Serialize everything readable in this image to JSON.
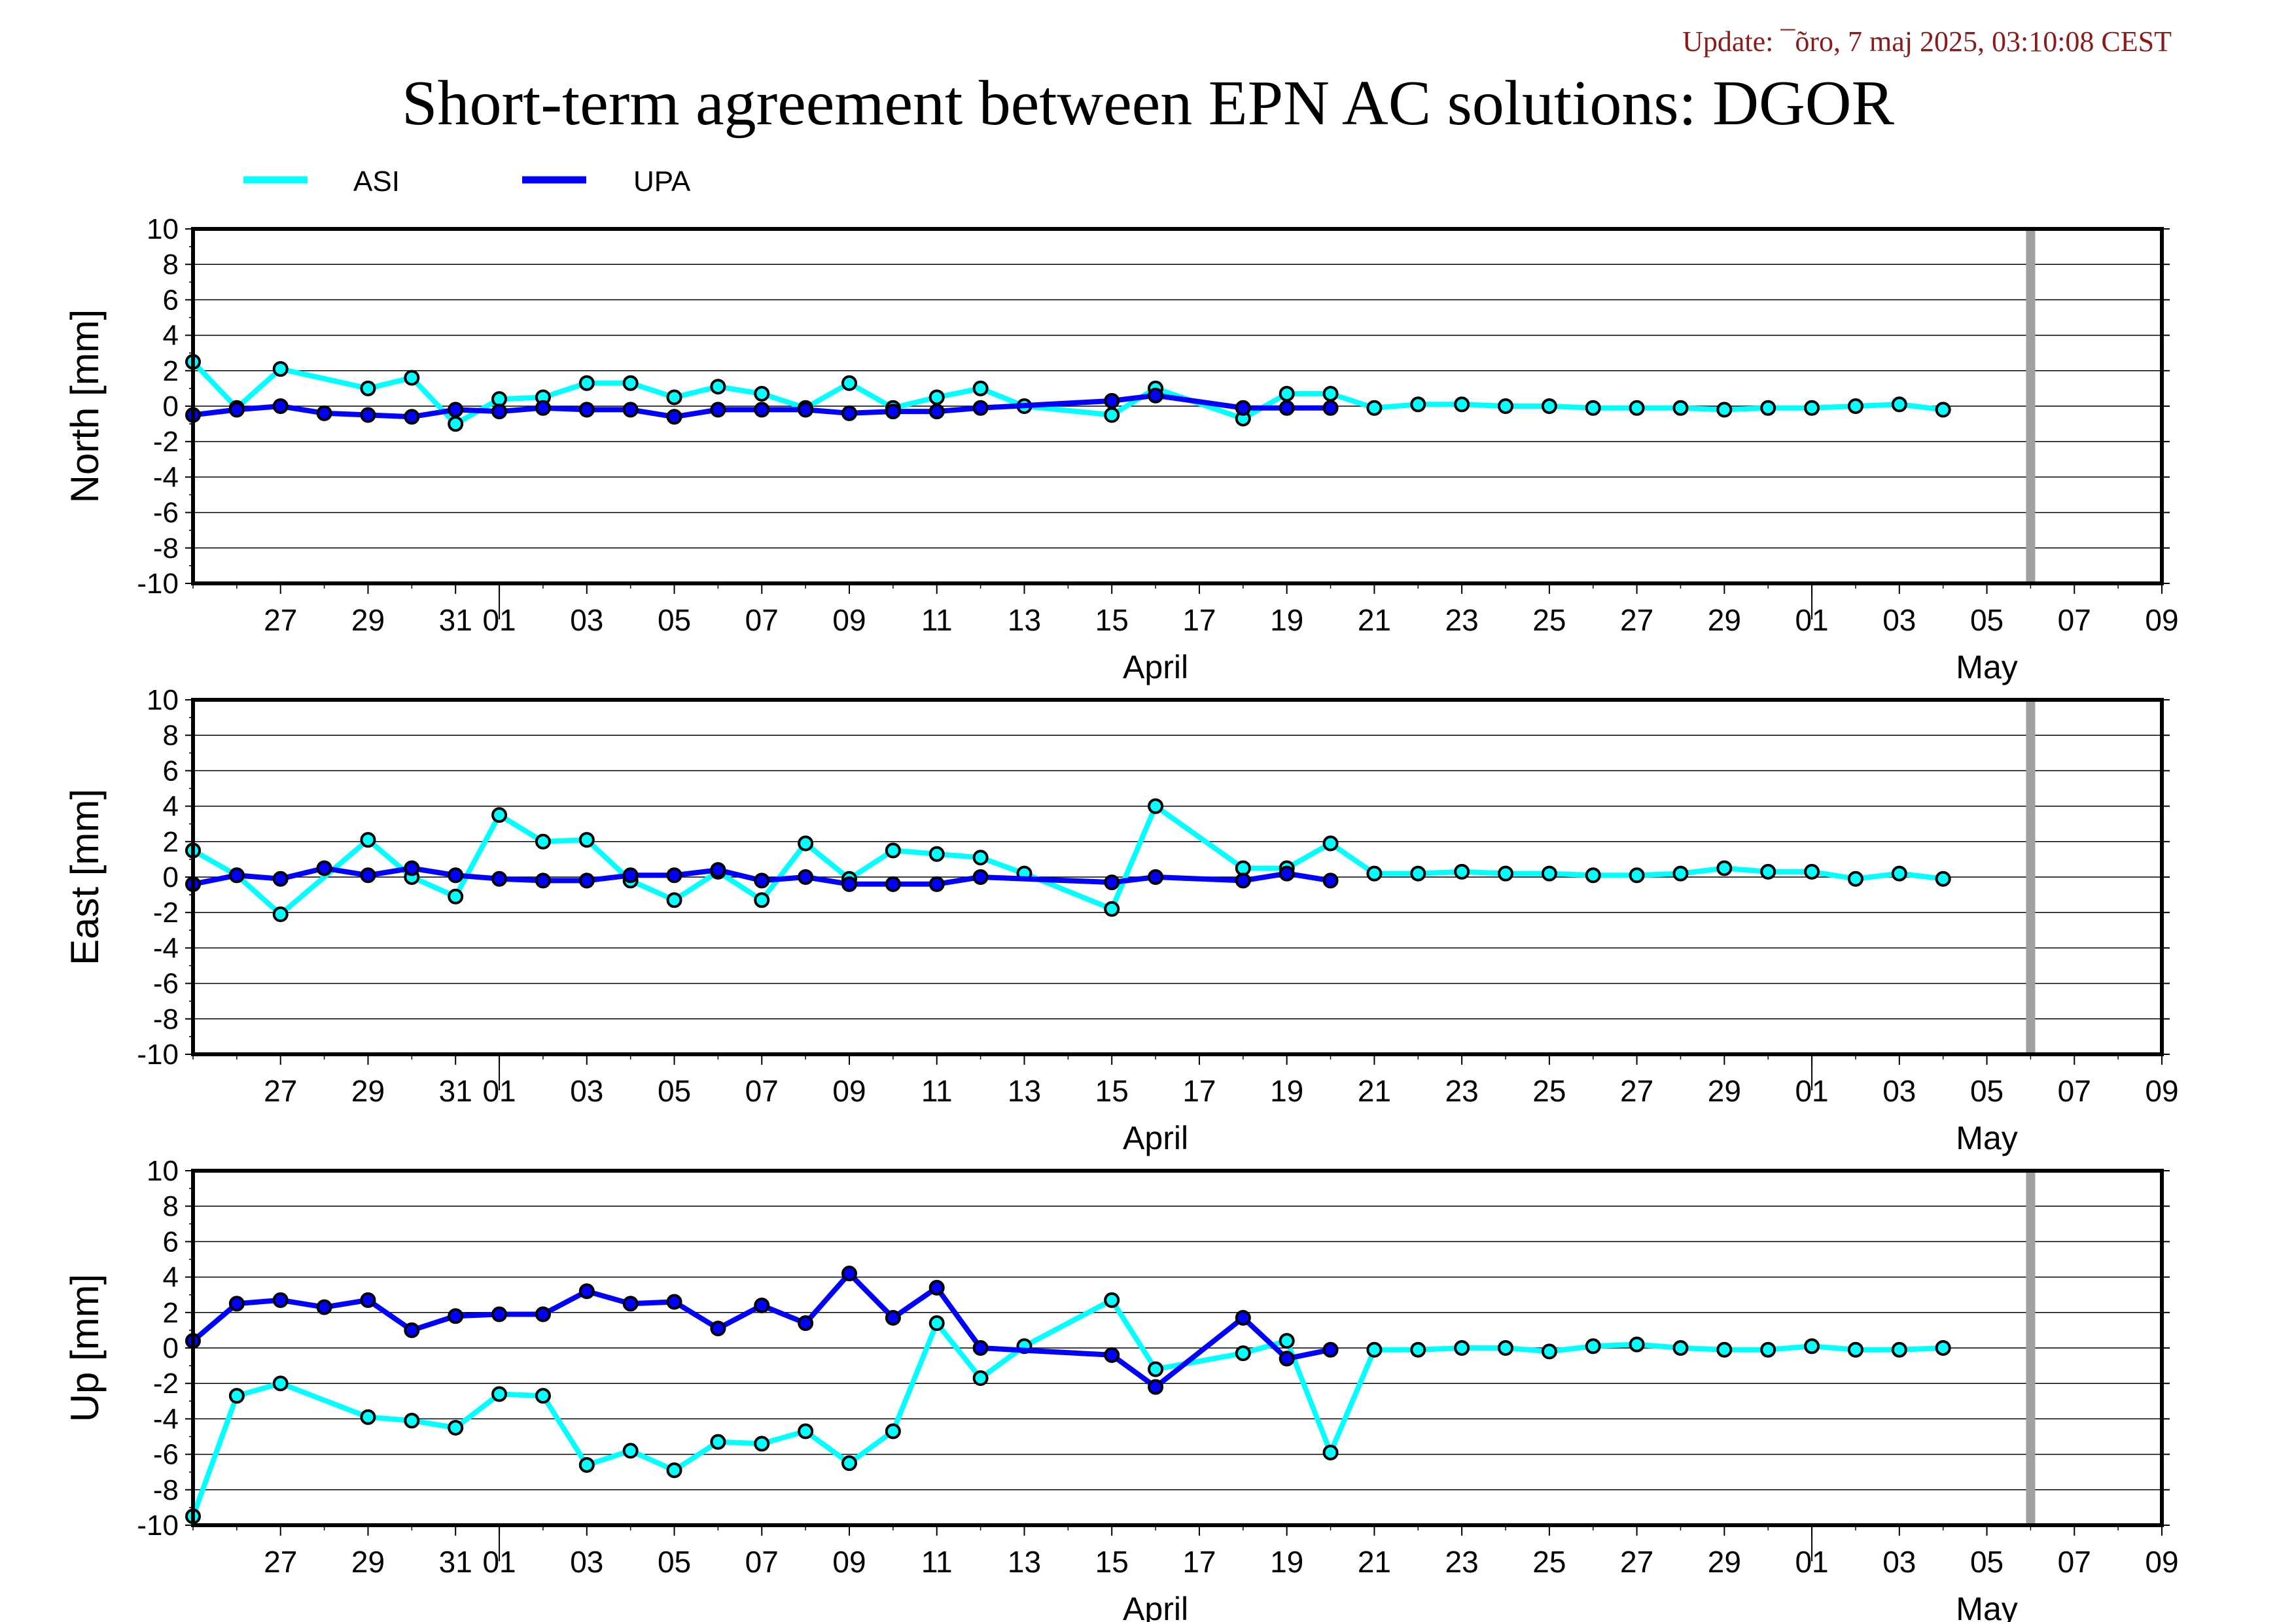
{
  "update_text": "Update: ¯õro, 7 maj 2025, 03:10:08 CEST",
  "title": "Short-term agreement between EPN AC solutions: DGOR",
  "colors": {
    "ASI": "#00ffff",
    "UPA": "#0000ff",
    "now_marker": "#a0a0a0",
    "update_text": "#8b1a1a"
  },
  "legend": [
    {
      "name": "ASI",
      "color": "#00ffff"
    },
    {
      "name": "UPA",
      "color": "#0000ff"
    }
  ],
  "x_axis": {
    "range": [
      "2025-03-25",
      "2025-05-09"
    ],
    "ticks": [
      {
        "date": "2025-03-27",
        "label": "27"
      },
      {
        "date": "2025-03-29",
        "label": "29"
      },
      {
        "date": "2025-03-31",
        "label": "31"
      },
      {
        "date": "2025-04-01",
        "label": "01"
      },
      {
        "date": "2025-04-03",
        "label": "03"
      },
      {
        "date": "2025-04-05",
        "label": "05"
      },
      {
        "date": "2025-04-07",
        "label": "07"
      },
      {
        "date": "2025-04-09",
        "label": "09"
      },
      {
        "date": "2025-04-11",
        "label": "11"
      },
      {
        "date": "2025-04-13",
        "label": "13"
      },
      {
        "date": "2025-04-15",
        "label": "15"
      },
      {
        "date": "2025-04-17",
        "label": "17"
      },
      {
        "date": "2025-04-19",
        "label": "19"
      },
      {
        "date": "2025-04-21",
        "label": "21"
      },
      {
        "date": "2025-04-23",
        "label": "23"
      },
      {
        "date": "2025-04-25",
        "label": "25"
      },
      {
        "date": "2025-04-27",
        "label": "27"
      },
      {
        "date": "2025-04-29",
        "label": "29"
      },
      {
        "date": "2025-05-01",
        "label": "01"
      },
      {
        "date": "2025-05-03",
        "label": "03"
      },
      {
        "date": "2025-05-05",
        "label": "05"
      },
      {
        "date": "2025-05-07",
        "label": "07"
      },
      {
        "date": "2025-05-09",
        "label": "09"
      }
    ],
    "month_labels": [
      {
        "date": "2025-04-16",
        "label": "April"
      },
      {
        "date": "2025-05-05",
        "label": "May"
      }
    ],
    "month_boundaries": [
      "2025-04-01",
      "2025-05-01"
    ],
    "now_marker": "2025-05-06"
  },
  "chart_data": [
    {
      "type": "line",
      "ylabel": "North [mm]",
      "ylim": [
        -10,
        10
      ],
      "yticks": [
        10,
        8,
        6,
        4,
        2,
        0,
        -2,
        -4,
        -6,
        -8,
        -10
      ],
      "grid": true,
      "series": [
        {
          "name": "ASI",
          "points": [
            [
              "2025-03-25",
              2.5
            ],
            [
              "2025-03-26",
              -0.1
            ],
            [
              "2025-03-27",
              2.1
            ],
            [
              "2025-03-29",
              1.0
            ],
            [
              "2025-03-30",
              1.6
            ],
            [
              "2025-03-31",
              -1.0
            ],
            [
              "2025-04-01",
              0.4
            ],
            [
              "2025-04-02",
              0.5
            ],
            [
              "2025-04-03",
              1.3
            ],
            [
              "2025-04-04",
              1.3
            ],
            [
              "2025-04-05",
              0.5
            ],
            [
              "2025-04-06",
              1.1
            ],
            [
              "2025-04-07",
              0.7
            ],
            [
              "2025-04-08",
              -0.1
            ],
            [
              "2025-04-09",
              1.3
            ],
            [
              "2025-04-10",
              -0.1
            ],
            [
              "2025-04-11",
              0.5
            ],
            [
              "2025-04-12",
              1.0
            ],
            [
              "2025-04-13",
              0.0
            ],
            [
              "2025-04-15",
              -0.5
            ],
            [
              "2025-04-16",
              1.0
            ],
            [
              "2025-04-18",
              -0.7
            ],
            [
              "2025-04-19",
              0.7
            ],
            [
              "2025-04-20",
              0.7
            ],
            [
              "2025-04-21",
              -0.1
            ],
            [
              "2025-04-22",
              0.1
            ],
            [
              "2025-04-23",
              0.1
            ],
            [
              "2025-04-24",
              0.0
            ],
            [
              "2025-04-25",
              0.0
            ],
            [
              "2025-04-26",
              -0.1
            ],
            [
              "2025-04-27",
              -0.1
            ],
            [
              "2025-04-28",
              -0.1
            ],
            [
              "2025-04-29",
              -0.2
            ],
            [
              "2025-04-30",
              -0.1
            ],
            [
              "2025-05-01",
              -0.1
            ],
            [
              "2025-05-02",
              0.0
            ],
            [
              "2025-05-03",
              0.1
            ],
            [
              "2025-05-04",
              -0.2
            ]
          ]
        },
        {
          "name": "UPA",
          "points": [
            [
              "2025-03-25",
              -0.5
            ],
            [
              "2025-03-26",
              -0.2
            ],
            [
              "2025-03-27",
              0.0
            ],
            [
              "2025-03-28",
              -0.4
            ],
            [
              "2025-03-29",
              -0.5
            ],
            [
              "2025-03-30",
              -0.6
            ],
            [
              "2025-03-31",
              -0.2
            ],
            [
              "2025-04-01",
              -0.3
            ],
            [
              "2025-04-02",
              -0.1
            ],
            [
              "2025-04-03",
              -0.2
            ],
            [
              "2025-04-04",
              -0.2
            ],
            [
              "2025-04-05",
              -0.6
            ],
            [
              "2025-04-06",
              -0.2
            ],
            [
              "2025-04-07",
              -0.2
            ],
            [
              "2025-04-08",
              -0.2
            ],
            [
              "2025-04-09",
              -0.4
            ],
            [
              "2025-04-10",
              -0.3
            ],
            [
              "2025-04-11",
              -0.3
            ],
            [
              "2025-04-12",
              -0.1
            ],
            [
              "2025-04-15",
              0.3
            ],
            [
              "2025-04-16",
              0.6
            ],
            [
              "2025-04-18",
              -0.1
            ],
            [
              "2025-04-19",
              -0.1
            ],
            [
              "2025-04-20",
              -0.1
            ]
          ]
        }
      ]
    },
    {
      "type": "line",
      "ylabel": "East [mm]",
      "ylim": [
        -10,
        10
      ],
      "yticks": [
        10,
        8,
        6,
        4,
        2,
        0,
        -2,
        -4,
        -6,
        -8,
        -10
      ],
      "grid": true,
      "series": [
        {
          "name": "ASI",
          "points": [
            [
              "2025-03-25",
              1.5
            ],
            [
              "2025-03-26",
              0.1
            ],
            [
              "2025-03-27",
              -2.1
            ],
            [
              "2025-03-29",
              2.1
            ],
            [
              "2025-03-30",
              0.0
            ],
            [
              "2025-03-31",
              -1.1
            ],
            [
              "2025-04-01",
              3.5
            ],
            [
              "2025-04-02",
              2.0
            ],
            [
              "2025-04-03",
              2.1
            ],
            [
              "2025-04-04",
              -0.2
            ],
            [
              "2025-04-05",
              -1.3
            ],
            [
              "2025-04-06",
              0.3
            ],
            [
              "2025-04-07",
              -1.3
            ],
            [
              "2025-04-08",
              1.9
            ],
            [
              "2025-04-09",
              -0.1
            ],
            [
              "2025-04-10",
              1.5
            ],
            [
              "2025-04-11",
              1.3
            ],
            [
              "2025-04-12",
              1.1
            ],
            [
              "2025-04-13",
              0.2
            ],
            [
              "2025-04-15",
              -1.8
            ],
            [
              "2025-04-16",
              4.0
            ],
            [
              "2025-04-18",
              0.5
            ],
            [
              "2025-04-19",
              0.5
            ],
            [
              "2025-04-20",
              1.9
            ],
            [
              "2025-04-21",
              0.2
            ],
            [
              "2025-04-22",
              0.2
            ],
            [
              "2025-04-23",
              0.3
            ],
            [
              "2025-04-24",
              0.2
            ],
            [
              "2025-04-25",
              0.2
            ],
            [
              "2025-04-26",
              0.1
            ],
            [
              "2025-04-27",
              0.1
            ],
            [
              "2025-04-28",
              0.2
            ],
            [
              "2025-04-29",
              0.5
            ],
            [
              "2025-04-30",
              0.3
            ],
            [
              "2025-05-01",
              0.3
            ],
            [
              "2025-05-02",
              -0.1
            ],
            [
              "2025-05-03",
              0.2
            ],
            [
              "2025-05-04",
              -0.1
            ]
          ]
        },
        {
          "name": "UPA",
          "points": [
            [
              "2025-03-25",
              -0.4
            ],
            [
              "2025-03-26",
              0.1
            ],
            [
              "2025-03-27",
              -0.1
            ],
            [
              "2025-03-28",
              0.5
            ],
            [
              "2025-03-29",
              0.1
            ],
            [
              "2025-03-30",
              0.5
            ],
            [
              "2025-03-31",
              0.1
            ],
            [
              "2025-04-01",
              -0.1
            ],
            [
              "2025-04-02",
              -0.2
            ],
            [
              "2025-04-03",
              -0.2
            ],
            [
              "2025-04-04",
              0.1
            ],
            [
              "2025-04-05",
              0.1
            ],
            [
              "2025-04-06",
              0.4
            ],
            [
              "2025-04-07",
              -0.2
            ],
            [
              "2025-04-08",
              0.0
            ],
            [
              "2025-04-09",
              -0.4
            ],
            [
              "2025-04-10",
              -0.4
            ],
            [
              "2025-04-11",
              -0.4
            ],
            [
              "2025-04-12",
              0.0
            ],
            [
              "2025-04-15",
              -0.3
            ],
            [
              "2025-04-16",
              0.0
            ],
            [
              "2025-04-18",
              -0.2
            ],
            [
              "2025-04-19",
              0.2
            ],
            [
              "2025-04-20",
              -0.2
            ]
          ]
        }
      ]
    },
    {
      "type": "line",
      "ylabel": "Up [mm]",
      "ylim": [
        -10,
        10
      ],
      "yticks": [
        10,
        8,
        6,
        4,
        2,
        0,
        -2,
        -4,
        -6,
        -8,
        -10
      ],
      "grid": true,
      "series": [
        {
          "name": "ASI",
          "points": [
            [
              "2025-03-25",
              -9.5
            ],
            [
              "2025-03-26",
              -2.7
            ],
            [
              "2025-03-27",
              -2.0
            ],
            [
              "2025-03-29",
              -3.9
            ],
            [
              "2025-03-30",
              -4.1
            ],
            [
              "2025-03-31",
              -4.5
            ],
            [
              "2025-04-01",
              -2.6
            ],
            [
              "2025-04-02",
              -2.7
            ],
            [
              "2025-04-03",
              -6.6
            ],
            [
              "2025-04-04",
              -5.8
            ],
            [
              "2025-04-05",
              -6.9
            ],
            [
              "2025-04-06",
              -5.3
            ],
            [
              "2025-04-07",
              -5.4
            ],
            [
              "2025-04-08",
              -4.7
            ],
            [
              "2025-04-09",
              -6.5
            ],
            [
              "2025-04-10",
              -4.7
            ],
            [
              "2025-04-11",
              1.4
            ],
            [
              "2025-04-12",
              -1.7
            ],
            [
              "2025-04-13",
              0.1
            ],
            [
              "2025-04-15",
              2.7
            ],
            [
              "2025-04-16",
              -1.2
            ],
            [
              "2025-04-18",
              -0.3
            ],
            [
              "2025-04-19",
              0.4
            ],
            [
              "2025-04-20",
              -5.9
            ],
            [
              "2025-04-21",
              -0.1
            ],
            [
              "2025-04-22",
              -0.1
            ],
            [
              "2025-04-23",
              0.0
            ],
            [
              "2025-04-24",
              0.0
            ],
            [
              "2025-04-25",
              -0.2
            ],
            [
              "2025-04-26",
              0.1
            ],
            [
              "2025-04-27",
              0.2
            ],
            [
              "2025-04-28",
              0.0
            ],
            [
              "2025-04-29",
              -0.1
            ],
            [
              "2025-04-30",
              -0.1
            ],
            [
              "2025-05-01",
              0.1
            ],
            [
              "2025-05-02",
              -0.1
            ],
            [
              "2025-05-03",
              -0.1
            ],
            [
              "2025-05-04",
              0.0
            ]
          ]
        },
        {
          "name": "UPA",
          "points": [
            [
              "2025-03-25",
              0.4
            ],
            [
              "2025-03-26",
              2.5
            ],
            [
              "2025-03-27",
              2.7
            ],
            [
              "2025-03-28",
              2.3
            ],
            [
              "2025-03-29",
              2.7
            ],
            [
              "2025-03-30",
              1.0
            ],
            [
              "2025-03-31",
              1.8
            ],
            [
              "2025-04-01",
              1.9
            ],
            [
              "2025-04-02",
              1.9
            ],
            [
              "2025-04-03",
              3.2
            ],
            [
              "2025-04-04",
              2.5
            ],
            [
              "2025-04-05",
              2.6
            ],
            [
              "2025-04-06",
              1.1
            ],
            [
              "2025-04-07",
              2.4
            ],
            [
              "2025-04-08",
              1.4
            ],
            [
              "2025-04-09",
              4.2
            ],
            [
              "2025-04-10",
              1.7
            ],
            [
              "2025-04-11",
              3.4
            ],
            [
              "2025-04-12",
              0.0
            ],
            [
              "2025-04-15",
              -0.4
            ],
            [
              "2025-04-16",
              -2.2
            ],
            [
              "2025-04-18",
              1.7
            ],
            [
              "2025-04-19",
              -0.6
            ],
            [
              "2025-04-20",
              -0.1
            ]
          ]
        }
      ]
    }
  ]
}
